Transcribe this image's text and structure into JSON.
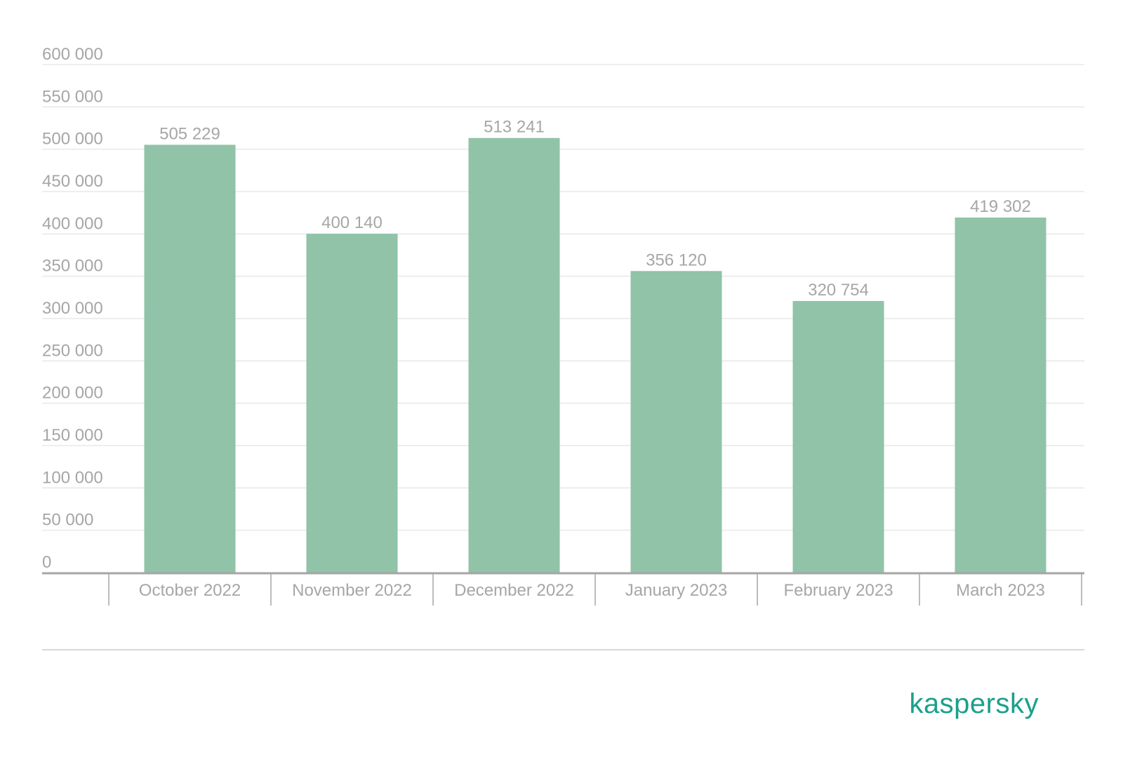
{
  "chart_data": {
    "type": "bar",
    "categories": [
      "October 2022",
      "November 2022",
      "December 2022",
      "January 2023",
      "February 2023",
      "March 2023"
    ],
    "values": [
      505229,
      400140,
      513241,
      356120,
      320754,
      419302
    ],
    "value_labels": [
      "505 229",
      "400 140",
      "513 241",
      "356 120",
      "320 754",
      "419 302"
    ],
    "ylim": [
      0,
      600000
    ],
    "yticks": [
      0,
      50000,
      100000,
      150000,
      200000,
      250000,
      300000,
      350000,
      400000,
      450000,
      500000,
      550000,
      600000
    ],
    "ytick_labels": [
      "0",
      "50 000",
      "100 000",
      "150 000",
      "200 000",
      "250 000",
      "300 000",
      "350 000",
      "400 000",
      "450 000",
      "500 000",
      "550 000",
      "600 000"
    ],
    "title": "",
    "xlabel": "",
    "ylabel": "",
    "grid": true,
    "bar_color": "#90c3a7"
  },
  "brand": {
    "logo_text": "kaspersky",
    "color": "#1aa08c"
  }
}
